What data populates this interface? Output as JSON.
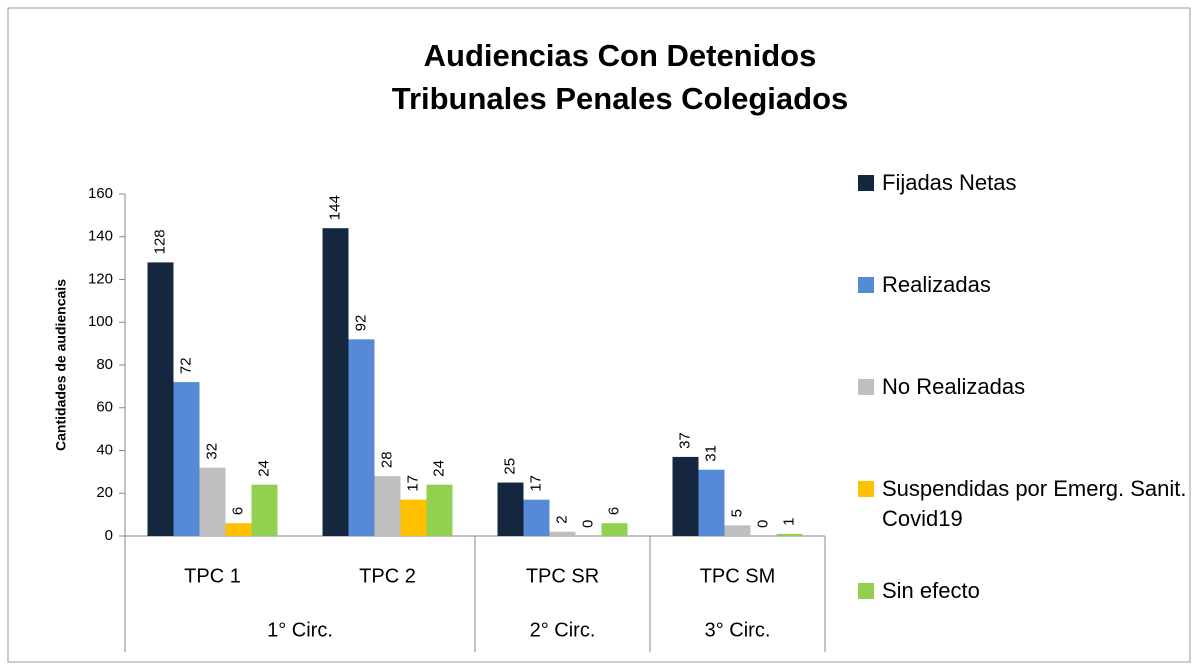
{
  "chart_data": {
    "type": "bar",
    "title": [
      "Audiencias Con Detenidos",
      "Tribunales Penales Colegiados"
    ],
    "y_label": "Cantidades de audiencais",
    "categories": [
      "TPC 1",
      "TPC 2",
      "TPC SR",
      "TPC SM"
    ],
    "category_groups": [
      {
        "label": "1° Circ.",
        "span": 2
      },
      {
        "label": "2° Circ.",
        "span": 1
      },
      {
        "label": "3° Circ.",
        "span": 1
      }
    ],
    "series": [
      {
        "name": "Fijadas Netas",
        "color": "#14273f",
        "values": [
          128,
          144,
          25,
          37
        ]
      },
      {
        "name": "Realizadas",
        "color": "#568ad6",
        "values": [
          72,
          92,
          17,
          31
        ]
      },
      {
        "name": "No Realizadas",
        "color": "#bfbfbf",
        "values": [
          32,
          28,
          2,
          5
        ]
      },
      {
        "name": "Suspendidas por Emerg. Sanit. Covid19",
        "color": "#ffc000",
        "values": [
          6,
          17,
          0,
          0
        ]
      },
      {
        "name": "Sin efecto",
        "color": "#92d050",
        "values": [
          24,
          24,
          6,
          1
        ]
      }
    ],
    "ylim": [
      0,
      160
    ],
    "yticks": [
      0,
      20,
      40,
      60,
      80,
      100,
      120,
      140,
      160
    ],
    "legend": "right",
    "grid": false
  }
}
